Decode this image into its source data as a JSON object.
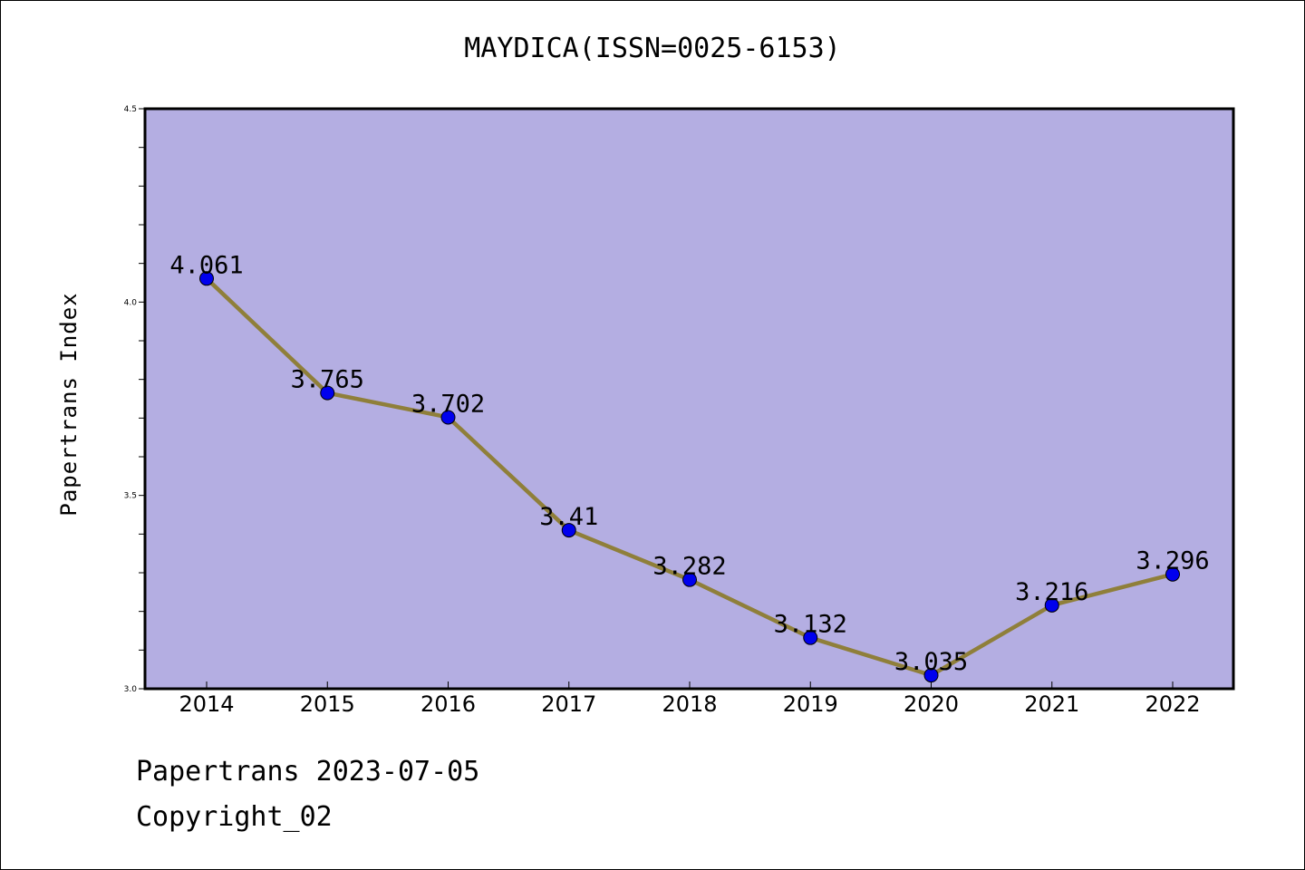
{
  "title": "MAYDICA(ISSN=0025-6153)",
  "footer": {
    "line1": "Papertrans 2023-07-05",
    "line2": "Copyright_02"
  },
  "colors": {
    "plot_background": "#b4aee2",
    "line": "#8f7f3a",
    "marker": "#0000ee",
    "axis": "#000000"
  },
  "chart_data": {
    "type": "line",
    "title": "MAYDICA(ISSN=0025-6153)",
    "xlabel": "",
    "ylabel": "Papertrans Index",
    "x": [
      "2014",
      "2015",
      "2016",
      "2017",
      "2018",
      "2019",
      "2020",
      "2021",
      "2022"
    ],
    "series": [
      {
        "values": [
          4.061,
          3.765,
          3.702,
          3.41,
          3.282,
          3.132,
          3.035,
          3.216,
          3.296
        ],
        "labels": [
          "4.061",
          "3.765",
          "3.702",
          "3.41",
          "3.282",
          "3.132",
          "3.035",
          "3.216",
          "3.296"
        ]
      }
    ],
    "ylim": [
      3.0,
      4.5
    ],
    "y_ticks": [
      "3.0",
      "3.5",
      "4.0",
      "4.5"
    ],
    "y_minor_step": 0.1,
    "grid": false,
    "markers": true,
    "data_labels": true
  }
}
